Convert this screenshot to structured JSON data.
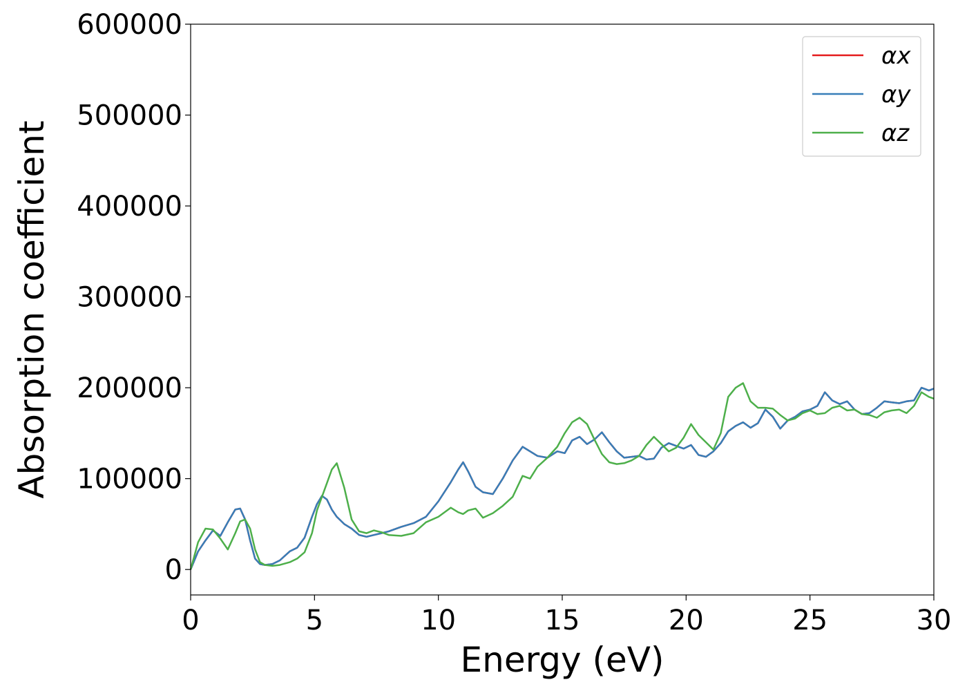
{
  "chart_data": {
    "type": "line",
    "xlabel": "Energy (eV)",
    "ylabel": "Absorption coefficient",
    "xlim": [
      0,
      30
    ],
    "ylim": [
      -28000,
      600000
    ],
    "xticks": [
      "0",
      "5",
      "10",
      "15",
      "20",
      "25",
      "30"
    ],
    "yticks": [
      "0",
      "100000",
      "200000",
      "300000",
      "400000",
      "500000",
      "600000"
    ],
    "grid": false,
    "legend_position": "top-right",
    "series": [
      {
        "name": "αx",
        "color": "#e41a1c",
        "x": [
          0,
          0.3,
          0.6,
          0.9,
          1.2,
          1.5,
          1.8,
          2.0,
          2.2,
          2.4,
          2.6,
          2.8,
          3.0,
          3.3,
          3.6,
          4.0,
          4.3,
          4.6,
          4.9,
          5.1,
          5.3,
          5.5,
          5.7,
          5.9,
          6.2,
          6.5,
          6.8,
          7.1,
          7.4,
          7.7,
          8.0,
          8.5,
          9.0,
          9.5,
          10.0,
          10.5,
          10.8,
          11.0,
          11.2,
          11.5,
          11.8,
          12.2,
          12.6,
          13.0,
          13.4,
          13.7,
          14.0,
          14.4,
          14.8,
          15.1,
          15.4,
          15.7,
          16.0,
          16.3,
          16.6,
          16.9,
          17.2,
          17.5,
          17.8,
          18.1,
          18.4,
          18.7,
          19.0,
          19.3,
          19.6,
          19.9,
          20.2,
          20.5,
          20.8,
          21.1,
          21.4,
          21.7,
          22.0,
          22.3,
          22.6,
          22.9,
          23.2,
          23.5,
          23.8,
          24.1,
          24.4,
          24.7,
          25.0,
          25.3,
          25.6,
          25.9,
          26.2,
          26.5,
          26.8,
          27.1,
          27.4,
          27.7,
          28.0,
          28.3,
          28.6,
          28.9,
          29.2,
          29.5,
          29.8,
          30.0
        ],
        "y": [
          0,
          20000,
          32000,
          43000,
          37000,
          52000,
          66000,
          67000,
          55000,
          32000,
          12000,
          6000,
          5000,
          6000,
          10000,
          20000,
          24000,
          35000,
          58000,
          72000,
          81000,
          77000,
          66000,
          58000,
          50000,
          45000,
          38000,
          36000,
          38000,
          40000,
          42000,
          47000,
          51000,
          58000,
          75000,
          96000,
          110000,
          118000,
          108000,
          91000,
          85000,
          83000,
          100000,
          120000,
          135000,
          130000,
          125000,
          123000,
          130000,
          128000,
          142000,
          146000,
          138000,
          143000,
          151000,
          140000,
          130000,
          123000,
          124000,
          125000,
          121000,
          122000,
          134000,
          139000,
          136000,
          133000,
          137000,
          126000,
          124000,
          130000,
          139000,
          152000,
          158000,
          162000,
          156000,
          161000,
          176000,
          168000,
          155000,
          164000,
          168000,
          174000,
          176000,
          180000,
          195000,
          186000,
          182000,
          185000,
          176000,
          171000,
          172000,
          178000,
          185000,
          184000,
          183000,
          185000,
          186000,
          200000,
          197000,
          199000
        ]
      },
      {
        "name": "αy",
        "color": "#377eb8",
        "x": [
          0,
          0.3,
          0.6,
          0.9,
          1.2,
          1.5,
          1.8,
          2.0,
          2.2,
          2.4,
          2.6,
          2.8,
          3.0,
          3.3,
          3.6,
          4.0,
          4.3,
          4.6,
          4.9,
          5.1,
          5.3,
          5.5,
          5.7,
          5.9,
          6.2,
          6.5,
          6.8,
          7.1,
          7.4,
          7.7,
          8.0,
          8.5,
          9.0,
          9.5,
          10.0,
          10.5,
          10.8,
          11.0,
          11.2,
          11.5,
          11.8,
          12.2,
          12.6,
          13.0,
          13.4,
          13.7,
          14.0,
          14.4,
          14.8,
          15.1,
          15.4,
          15.7,
          16.0,
          16.3,
          16.6,
          16.9,
          17.2,
          17.5,
          17.8,
          18.1,
          18.4,
          18.7,
          19.0,
          19.3,
          19.6,
          19.9,
          20.2,
          20.5,
          20.8,
          21.1,
          21.4,
          21.7,
          22.0,
          22.3,
          22.6,
          22.9,
          23.2,
          23.5,
          23.8,
          24.1,
          24.4,
          24.7,
          25.0,
          25.3,
          25.6,
          25.9,
          26.2,
          26.5,
          26.8,
          27.1,
          27.4,
          27.7,
          28.0,
          28.3,
          28.6,
          28.9,
          29.2,
          29.5,
          29.8,
          30.0
        ],
        "y": [
          0,
          20000,
          32000,
          43000,
          37000,
          52000,
          66000,
          67000,
          55000,
          32000,
          12000,
          6000,
          5000,
          6000,
          10000,
          20000,
          24000,
          35000,
          58000,
          72000,
          81000,
          77000,
          66000,
          58000,
          50000,
          45000,
          38000,
          36000,
          38000,
          40000,
          42000,
          47000,
          51000,
          58000,
          75000,
          96000,
          110000,
          118000,
          108000,
          91000,
          85000,
          83000,
          100000,
          120000,
          135000,
          130000,
          125000,
          123000,
          130000,
          128000,
          142000,
          146000,
          138000,
          143000,
          151000,
          140000,
          130000,
          123000,
          124000,
          125000,
          121000,
          122000,
          134000,
          139000,
          136000,
          133000,
          137000,
          126000,
          124000,
          130000,
          139000,
          152000,
          158000,
          162000,
          156000,
          161000,
          176000,
          168000,
          155000,
          164000,
          168000,
          174000,
          176000,
          180000,
          195000,
          186000,
          182000,
          185000,
          176000,
          171000,
          172000,
          178000,
          185000,
          184000,
          183000,
          185000,
          186000,
          200000,
          197000,
          199000
        ]
      },
      {
        "name": "αz",
        "color": "#4daf4a",
        "x": [
          0,
          0.3,
          0.6,
          0.9,
          1.2,
          1.5,
          1.8,
          2.0,
          2.2,
          2.4,
          2.6,
          2.8,
          3.0,
          3.3,
          3.6,
          4.0,
          4.3,
          4.6,
          4.9,
          5.1,
          5.3,
          5.5,
          5.7,
          5.9,
          6.2,
          6.5,
          6.8,
          7.1,
          7.4,
          7.7,
          8.0,
          8.5,
          9.0,
          9.5,
          10.0,
          10.5,
          10.8,
          11.0,
          11.2,
          11.5,
          11.8,
          12.2,
          12.6,
          13.0,
          13.4,
          13.7,
          14.0,
          14.4,
          14.8,
          15.1,
          15.4,
          15.7,
          16.0,
          16.3,
          16.6,
          16.9,
          17.2,
          17.5,
          17.8,
          18.1,
          18.4,
          18.7,
          19.0,
          19.3,
          19.6,
          19.9,
          20.2,
          20.5,
          20.8,
          21.1,
          21.4,
          21.7,
          22.0,
          22.3,
          22.6,
          22.9,
          23.2,
          23.5,
          23.8,
          24.1,
          24.4,
          24.7,
          25.0,
          25.3,
          25.6,
          25.9,
          26.2,
          26.5,
          26.8,
          27.1,
          27.4,
          27.7,
          28.0,
          28.3,
          28.6,
          28.9,
          29.2,
          29.5,
          29.8,
          30.0
        ],
        "y": [
          0,
          30000,
          45000,
          44000,
          34000,
          22000,
          40000,
          53000,
          55000,
          45000,
          22000,
          8000,
          5000,
          4000,
          5000,
          8000,
          12000,
          19000,
          40000,
          65000,
          80000,
          95000,
          110000,
          117000,
          90000,
          55000,
          42000,
          40000,
          43000,
          41000,
          38000,
          37000,
          40000,
          52000,
          58000,
          68000,
          63000,
          61000,
          65000,
          67000,
          57000,
          62000,
          70000,
          80000,
          103000,
          100000,
          113000,
          123000,
          135000,
          150000,
          162000,
          167000,
          160000,
          143000,
          127000,
          118000,
          116000,
          117000,
          120000,
          125000,
          137000,
          146000,
          138000,
          130000,
          134000,
          145000,
          160000,
          148000,
          140000,
          132000,
          150000,
          190000,
          200000,
          205000,
          185000,
          178000,
          178000,
          177000,
          170000,
          164000,
          166000,
          172000,
          175000,
          171000,
          172000,
          178000,
          180000,
          175000,
          176000,
          171000,
          170000,
          167000,
          173000,
          175000,
          176000,
          172000,
          180000,
          195000,
          190000,
          188000
        ]
      }
    ]
  }
}
